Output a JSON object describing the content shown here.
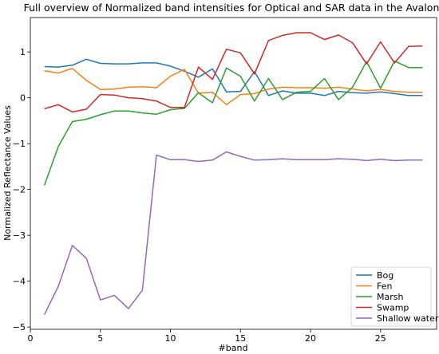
{
  "chart_data": {
    "type": "line",
    "title": "Full overview of Normalized band intensities for Optical and SAR data in the Avalon",
    "xlabel": "#band",
    "ylabel": "Normalized Reflectance Values",
    "xlim": [
      0,
      29
    ],
    "ylim": [
      -5.05,
      1.75
    ],
    "xticks": [
      0,
      5,
      10,
      15,
      20,
      25
    ],
    "yticks": [
      -5,
      -4,
      -3,
      -2,
      -1,
      0,
      1
    ],
    "grid": false,
    "legend_position": "lower-right",
    "x": [
      1,
      2,
      3,
      4,
      5,
      6,
      7,
      8,
      9,
      10,
      11,
      12,
      13,
      14,
      15,
      16,
      17,
      18,
      19,
      20,
      21,
      22,
      23,
      24,
      25,
      26,
      27,
      28
    ],
    "series": [
      {
        "name": "Bog",
        "color": "#1f77b4",
        "values": [
          0.68,
          0.67,
          0.71,
          0.84,
          0.75,
          0.74,
          0.74,
          0.76,
          0.76,
          0.69,
          0.58,
          0.45,
          0.63,
          0.13,
          0.14,
          0.57,
          0.05,
          0.15,
          0.1,
          0.1,
          0.05,
          0.14,
          0.11,
          0.1,
          0.13,
          0.09,
          0.05,
          0.05
        ]
      },
      {
        "name": "Fen",
        "color": "#ff7f0e",
        "values": [
          0.59,
          0.54,
          0.64,
          0.38,
          0.18,
          0.19,
          0.23,
          0.24,
          0.22,
          0.47,
          0.62,
          0.1,
          0.12,
          -0.15,
          0.07,
          0.09,
          0.19,
          0.23,
          0.22,
          0.22,
          0.21,
          0.23,
          0.19,
          0.15,
          0.18,
          0.14,
          0.12,
          0.12
        ]
      },
      {
        "name": "Marsh",
        "color": "#2ca02c",
        "values": [
          -1.91,
          -1.06,
          -0.52,
          -0.47,
          -0.37,
          -0.29,
          -0.29,
          -0.33,
          -0.36,
          -0.26,
          -0.23,
          0.11,
          -0.11,
          0.65,
          0.47,
          -0.07,
          0.42,
          -0.04,
          0.12,
          0.14,
          0.42,
          -0.04,
          0.23,
          0.79,
          0.21,
          0.8,
          0.66,
          0.66
        ]
      },
      {
        "name": "Swamp",
        "color": "#d62728",
        "values": [
          -0.24,
          -0.15,
          -0.31,
          -0.25,
          0.07,
          0.06,
          0.0,
          -0.02,
          -0.07,
          -0.21,
          -0.21,
          0.67,
          0.4,
          1.06,
          0.98,
          0.52,
          1.25,
          1.36,
          1.42,
          1.42,
          1.27,
          1.37,
          1.2,
          0.74,
          1.22,
          0.76,
          1.12,
          1.13
        ]
      },
      {
        "name": "Shallow water",
        "color": "#9467bd",
        "values": [
          -4.73,
          -4.11,
          -3.22,
          -3.5,
          -4.41,
          -4.31,
          -4.6,
          -4.2,
          -1.25,
          -1.35,
          -1.35,
          -1.39,
          -1.36,
          -1.18,
          -1.28,
          -1.36,
          -1.35,
          -1.33,
          -1.35,
          -1.35,
          -1.35,
          -1.33,
          -1.34,
          -1.37,
          -1.34,
          -1.37,
          -1.36,
          -1.36
        ]
      }
    ]
  }
}
